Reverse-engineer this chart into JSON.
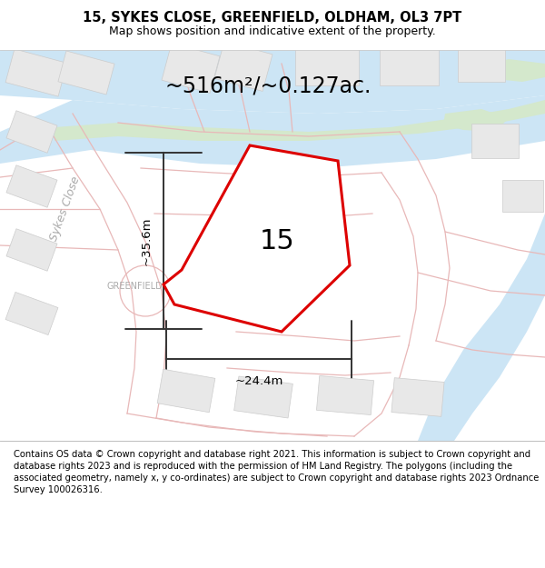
{
  "title_line1": "15, SYKES CLOSE, GREENFIELD, OLDHAM, OL3 7PT",
  "title_line2": "Map shows position and indicative extent of the property.",
  "footer_text": "Contains OS data © Crown copyright and database right 2021. This information is subject to Crown copyright and database rights 2023 and is reproduced with the permission of HM Land Registry. The polygons (including the associated geometry, namely x, y co-ordinates) are subject to Crown copyright and database rights 2023 Ordnance Survey 100026316.",
  "area_label": "~516m²/~0.127ac.",
  "plot_number": "15",
  "dim_height": "~35.6m",
  "dim_width": "~24.4m",
  "map_bg": "#f8f7f5",
  "road_fill": "#f0eeeb",
  "road_line": "#e8b8b8",
  "water_color": "#cce5f5",
  "green_color": "#d4e8cc",
  "building_color": "#e8e8e8",
  "building_edge": "#cccccc",
  "dim_line_color": "#333333",
  "red_color": "#dd0000",
  "title_fontsize": 10.5,
  "subtitle_fontsize": 9,
  "area_fontsize": 17,
  "plot_num_fontsize": 22,
  "dim_fontsize": 9.5,
  "road_label_fontsize": 9,
  "gf_label_fontsize": 7,
  "footer_fontsize": 7.2
}
